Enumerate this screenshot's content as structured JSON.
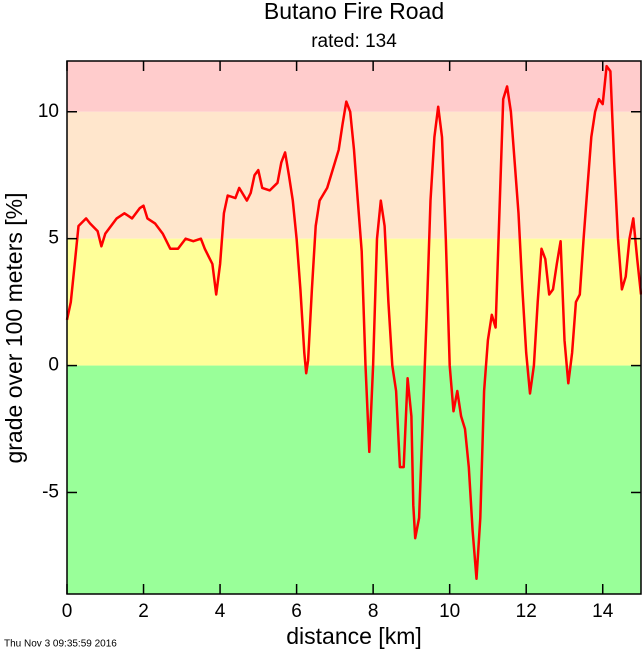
{
  "chart_data": {
    "type": "line",
    "title": "Butano Fire Road",
    "subtitle": "rated: 134",
    "x_label": "distance [km]",
    "y_label": "grade over 100 meters [%]",
    "timestamp": "Thu Nov  3 09:35:59 2016",
    "xlim": [
      0,
      15
    ],
    "ylim": [
      -9,
      12
    ],
    "xticks": [
      0,
      2,
      4,
      6,
      8,
      10,
      12,
      14
    ],
    "yticks": [
      -5,
      0,
      5,
      10
    ],
    "bands": [
      {
        "from": 10,
        "to": 12,
        "color": "#ffcccc"
      },
      {
        "from": 5,
        "to": 10,
        "color": "#ffe6cc"
      },
      {
        "from": 0,
        "to": 5,
        "color": "#ffff99"
      },
      {
        "from": -9,
        "to": 0,
        "color": "#99ff99"
      }
    ],
    "series": [
      {
        "color": "#ff0000",
        "x": [
          0,
          0.1,
          0.2,
          0.3,
          0.5,
          0.6,
          0.8,
          0.9,
          1.0,
          1.3,
          1.5,
          1.7,
          1.9,
          2.0,
          2.1,
          2.3,
          2.5,
          2.7,
          2.9,
          3.1,
          3.3,
          3.5,
          3.6,
          3.7,
          3.8,
          3.9,
          4.0,
          4.1,
          4.2,
          4.4,
          4.5,
          4.7,
          4.8,
          4.9,
          5.0,
          5.1,
          5.3,
          5.5,
          5.6,
          5.7,
          5.8,
          5.9,
          6.0,
          6.1,
          6.2,
          6.25,
          6.3,
          6.4,
          6.5,
          6.6,
          6.8,
          7.0,
          7.1,
          7.2,
          7.3,
          7.4,
          7.5,
          7.6,
          7.7,
          7.8,
          7.9,
          8.0,
          8.1,
          8.2,
          8.3,
          8.4,
          8.5,
          8.6,
          8.7,
          8.8,
          8.9,
          9.0,
          9.05,
          9.1,
          9.2,
          9.3,
          9.4,
          9.5,
          9.6,
          9.7,
          9.8,
          9.9,
          10.0,
          10.1,
          10.2,
          10.3,
          10.4,
          10.5,
          10.6,
          10.7,
          10.8,
          10.9,
          11.0,
          11.1,
          11.2,
          11.3,
          11.4,
          11.5,
          11.6,
          11.7,
          11.8,
          11.9,
          12.0,
          12.1,
          12.2,
          12.3,
          12.4,
          12.5,
          12.6,
          12.7,
          12.8,
          12.9,
          13.0,
          13.1,
          13.2,
          13.3,
          13.4,
          13.5,
          13.6,
          13.7,
          13.8,
          13.9,
          14.0,
          14.1,
          14.2,
          14.3,
          14.4,
          14.5,
          14.6,
          14.7,
          14.8,
          14.9,
          15.0
        ],
        "values": [
          1.8,
          2.5,
          4,
          5.5,
          5.8,
          5.6,
          5.3,
          4.7,
          5.2,
          5.8,
          6.0,
          5.8,
          6.2,
          6.3,
          5.8,
          5.6,
          5.2,
          4.6,
          4.6,
          5.0,
          4.9,
          5.0,
          4.6,
          4.3,
          4.0,
          2.8,
          4.0,
          6.0,
          6.7,
          6.6,
          7.0,
          6.5,
          6.8,
          7.5,
          7.7,
          7.0,
          6.9,
          7.2,
          8.0,
          8.4,
          7.5,
          6.5,
          5.0,
          3.0,
          0.5,
          -0.3,
          0.2,
          3.0,
          5.5,
          6.5,
          7.0,
          8.0,
          8.5,
          9.5,
          10.4,
          10.0,
          8.5,
          6.5,
          4.5,
          0,
          -3.4,
          0,
          5.0,
          6.5,
          5.5,
          2.5,
          0,
          -1.0,
          -4.0,
          -4.0,
          -0.5,
          -2.0,
          -5.5,
          -6.8,
          -6.0,
          -2.0,
          2.0,
          6.5,
          9.0,
          10.2,
          9.0,
          5.0,
          0.0,
          -1.8,
          -1.0,
          -2.0,
          -2.5,
          -4.0,
          -6.5,
          -8.4,
          -6.0,
          -1.0,
          1.0,
          2.0,
          1.5,
          6.0,
          10.5,
          11.0,
          10.0,
          8.0,
          6.0,
          3.0,
          0.5,
          -1.1,
          0.0,
          2.5,
          4.6,
          4.2,
          2.8,
          3.0,
          4.0,
          4.9,
          1.0,
          -0.7,
          0.5,
          2.5,
          2.8,
          5.0,
          7.0,
          9.0,
          10.0,
          10.5,
          10.3,
          11.8,
          11.6,
          8.0,
          5.0,
          3.0,
          3.5,
          5.0,
          5.8,
          4.2,
          2.8
        ]
      }
    ]
  }
}
